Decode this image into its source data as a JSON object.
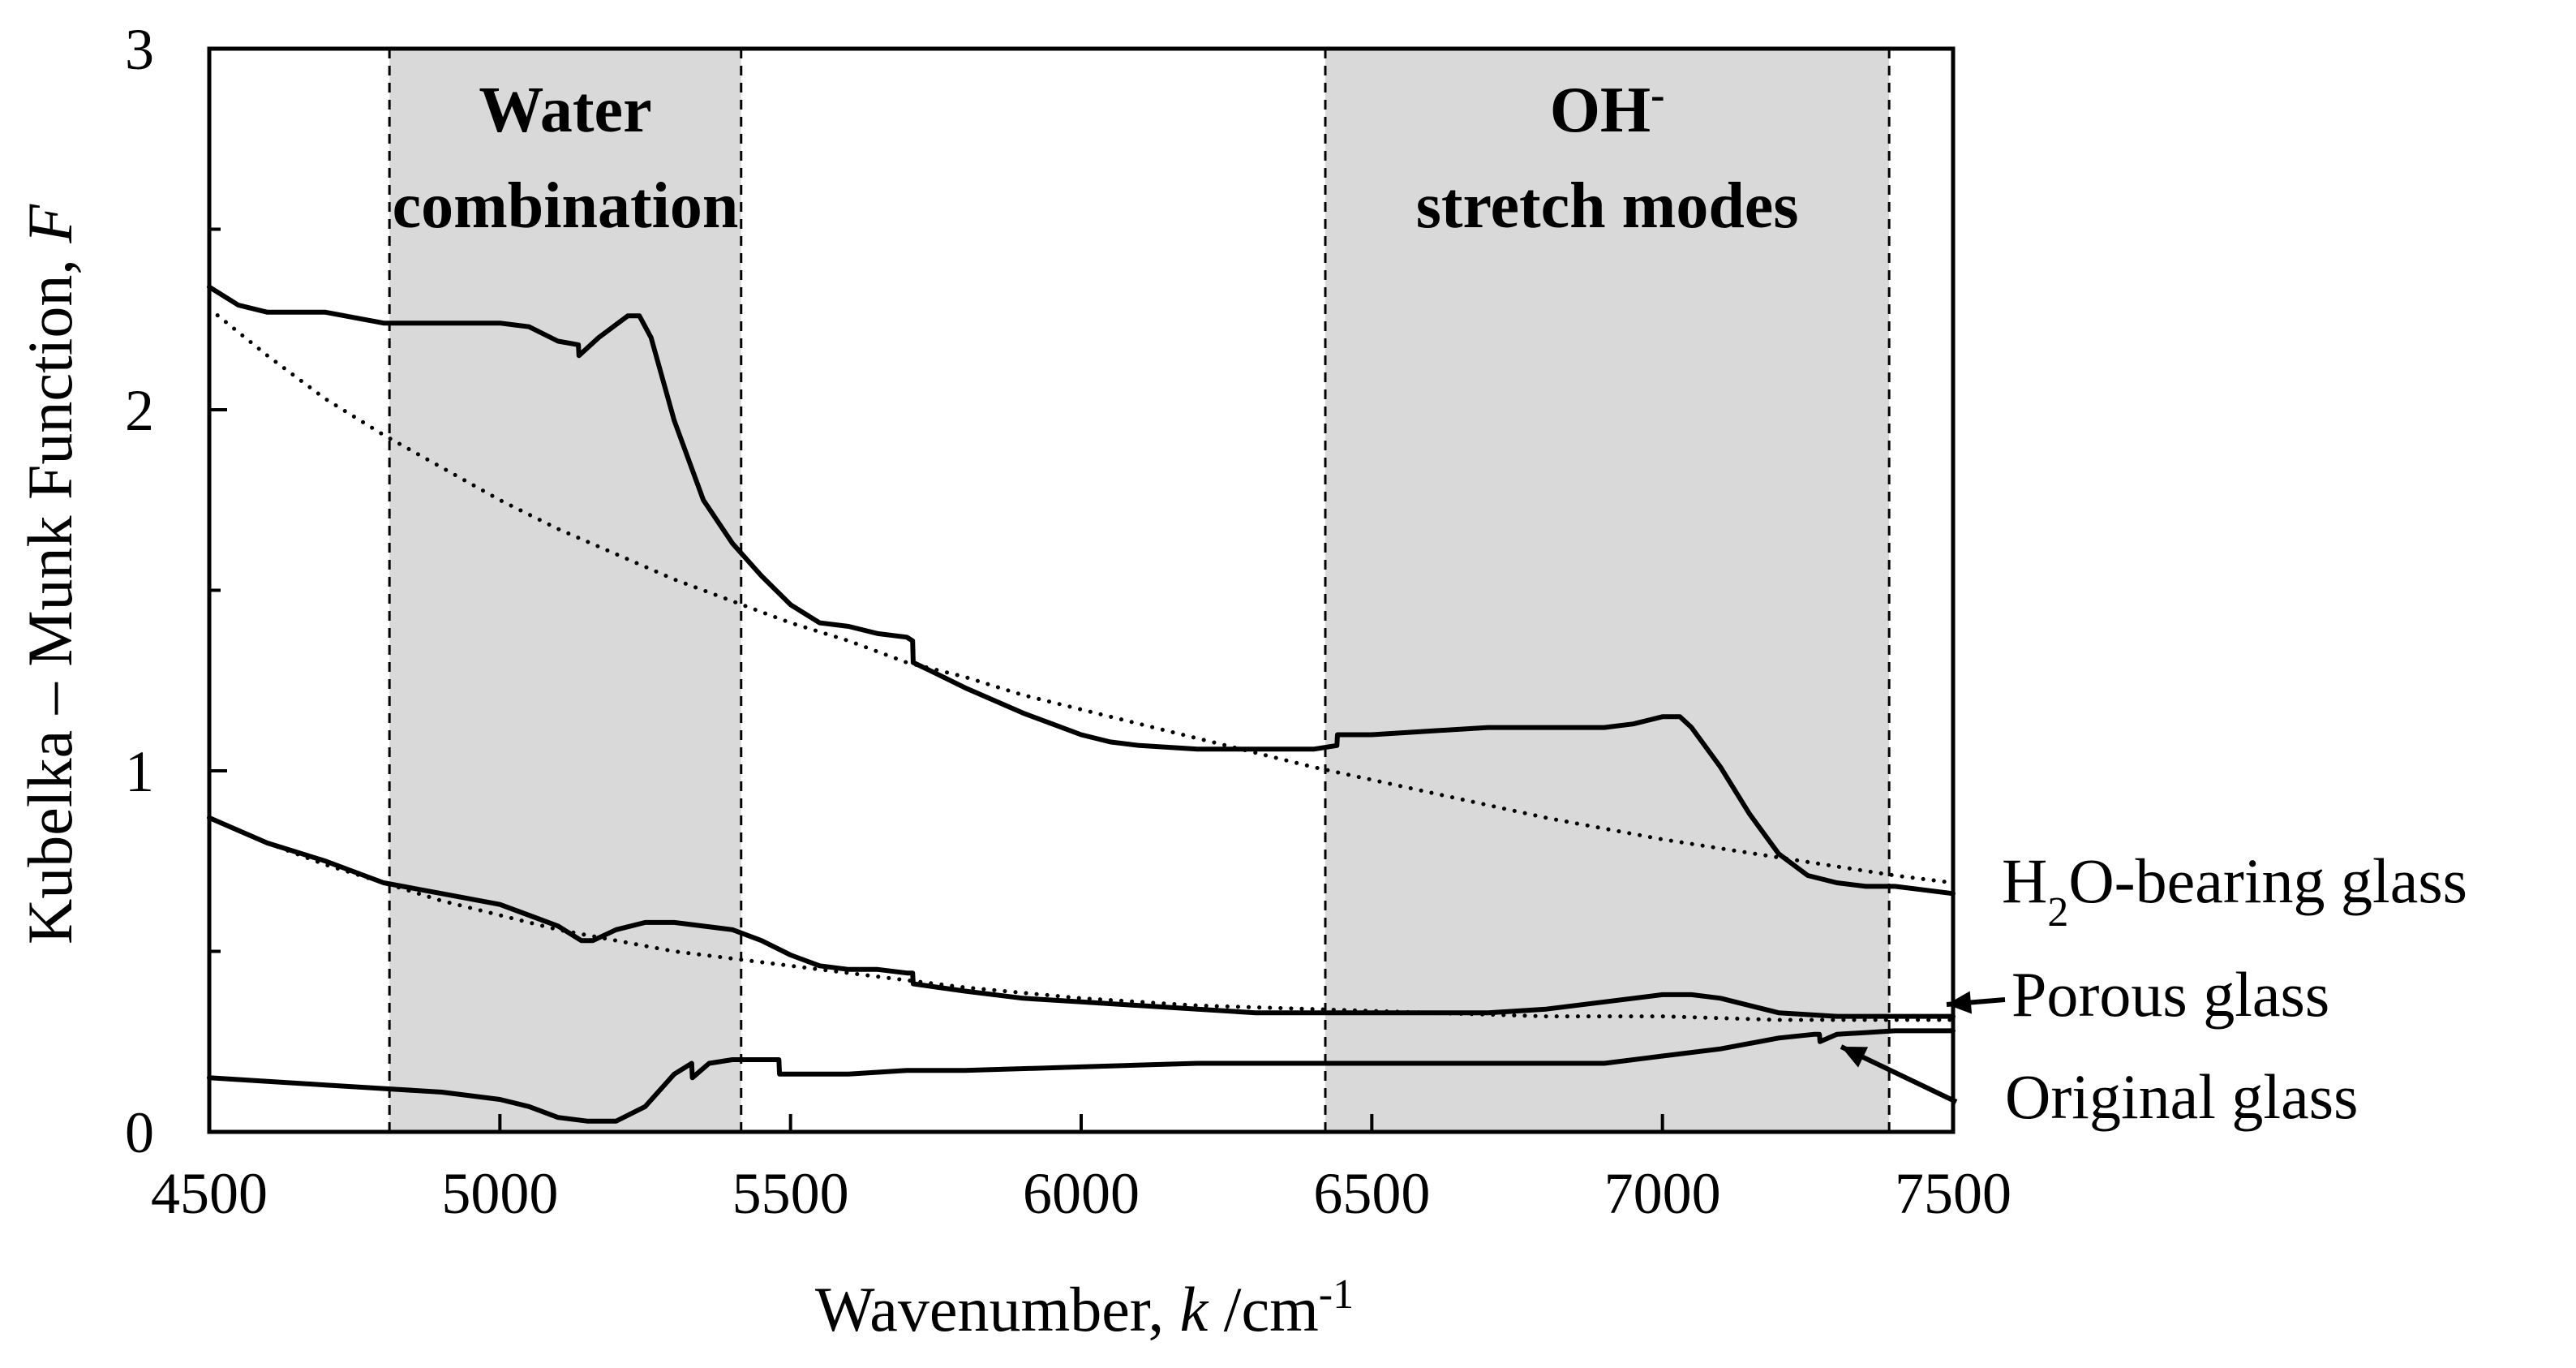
{
  "chart_data": {
    "type": "line",
    "xlabel": {
      "prefix": "Wavenumber, ",
      "var": "k",
      "unit": " /cm",
      "sup": "-1"
    },
    "ylabel": {
      "prefix": "Kubelka – Munk Function, ",
      "var": "F"
    },
    "xlim": [
      4500,
      7500
    ],
    "ylim": [
      0,
      3
    ],
    "xticks": [
      "4500",
      "5000",
      "5500",
      "6000",
      "6500",
      "7000",
      "7500"
    ],
    "yticks": [
      "0",
      "1",
      "2",
      "3"
    ],
    "regions": [
      {
        "name": "water-combination",
        "x_start": 4810,
        "x_end": 5415,
        "label_lines": [
          "Water",
          "combination"
        ],
        "label_sup": ""
      },
      {
        "name": "oh-stretch",
        "x_start": 6420,
        "x_end": 7390,
        "label_lines": [
          "OH",
          "stretch modes"
        ],
        "label_sup": "-"
      }
    ],
    "series": [
      {
        "name": "H2O-bearing glass",
        "label_main": "H",
        "label_sub": "2",
        "label_rest": "O-bearing glass",
        "style": "solid",
        "x": [
          4500,
          4550,
          4600,
          4700,
          4800,
          4900,
          5000,
          5050,
          5100,
          5135,
          5136,
          5170,
          5220,
          5240,
          5260,
          5300,
          5350,
          5400,
          5450,
          5500,
          5550,
          5600,
          5650,
          5700,
          5710,
          5711,
          5750,
          5800,
          5900,
          6000,
          6050,
          6100,
          6200,
          6300,
          6400,
          6440,
          6441,
          6500,
          6600,
          6700,
          6800,
          6900,
          6950,
          7000,
          7030,
          7050,
          7100,
          7150,
          7200,
          7250,
          7300,
          7350,
          7400,
          7450,
          7500
        ],
        "y": [
          2.34,
          2.29,
          2.27,
          2.27,
          2.24,
          2.24,
          2.24,
          2.23,
          2.19,
          2.18,
          2.15,
          2.2,
          2.26,
          2.26,
          2.2,
          1.97,
          1.75,
          1.63,
          1.54,
          1.46,
          1.41,
          1.4,
          1.38,
          1.37,
          1.36,
          1.3,
          1.27,
          1.23,
          1.16,
          1.1,
          1.08,
          1.07,
          1.06,
          1.06,
          1.06,
          1.07,
          1.1,
          1.1,
          1.11,
          1.12,
          1.12,
          1.12,
          1.13,
          1.15,
          1.15,
          1.12,
          1.01,
          0.88,
          0.77,
          0.71,
          0.69,
          0.68,
          0.68,
          0.67,
          0.66
        ]
      },
      {
        "name": "H2O-bearing glass baseline",
        "style": "dotted",
        "x": [
          4500,
          4600,
          4700,
          4800,
          4900,
          5000,
          5100,
          5200,
          5300,
          5400,
          5500,
          5600,
          5700,
          5800,
          5900,
          6000,
          6200,
          6400,
          6600,
          6800,
          7000,
          7200,
          7400,
          7500
        ],
        "y": [
          2.28,
          2.15,
          2.03,
          1.93,
          1.84,
          1.75,
          1.67,
          1.6,
          1.53,
          1.47,
          1.41,
          1.36,
          1.3,
          1.26,
          1.21,
          1.17,
          1.09,
          1.01,
          0.94,
          0.87,
          0.81,
          0.76,
          0.71,
          0.69
        ]
      },
      {
        "name": "Porous glass",
        "label_main": "Porous glass",
        "style": "solid",
        "x": [
          4500,
          4600,
          4700,
          4800,
          4900,
          5000,
          5050,
          5100,
          5140,
          5160,
          5200,
          5250,
          5300,
          5400,
          5450,
          5500,
          5550,
          5600,
          5650,
          5700,
          5710,
          5711,
          5800,
          5900,
          6000,
          6100,
          6200,
          6300,
          6400,
          6500,
          6600,
          6700,
          6800,
          6900,
          7000,
          7050,
          7100,
          7150,
          7200,
          7300,
          7400,
          7500
        ],
        "y": [
          0.87,
          0.8,
          0.75,
          0.69,
          0.66,
          0.63,
          0.6,
          0.57,
          0.53,
          0.53,
          0.56,
          0.58,
          0.58,
          0.56,
          0.53,
          0.49,
          0.46,
          0.45,
          0.45,
          0.44,
          0.44,
          0.41,
          0.39,
          0.37,
          0.36,
          0.35,
          0.34,
          0.33,
          0.33,
          0.33,
          0.33,
          0.33,
          0.34,
          0.36,
          0.38,
          0.38,
          0.37,
          0.35,
          0.33,
          0.32,
          0.32,
          0.32
        ]
      },
      {
        "name": "Porous glass baseline",
        "style": "dotted",
        "x": [
          4500,
          4600,
          4700,
          4800,
          4900,
          5000,
          5100,
          5200,
          5300,
          5400,
          5500,
          5600,
          5700,
          5800,
          6000,
          6200,
          6400,
          6600,
          6800,
          7000,
          7200,
          7500
        ],
        "y": [
          0.87,
          0.8,
          0.74,
          0.69,
          0.64,
          0.6,
          0.56,
          0.53,
          0.5,
          0.48,
          0.46,
          0.44,
          0.42,
          0.4,
          0.37,
          0.35,
          0.34,
          0.33,
          0.32,
          0.32,
          0.31,
          0.31
        ]
      },
      {
        "name": "Original glass",
        "label_main": "Original glass",
        "style": "solid",
        "x": [
          4500,
          4600,
          4700,
          4800,
          4900,
          5000,
          5050,
          5100,
          5150,
          5200,
          5250,
          5300,
          5330,
          5331,
          5360,
          5400,
          5480,
          5481,
          5600,
          5700,
          5800,
          6000,
          6200,
          6400,
          6500,
          6700,
          6800,
          6900,
          7000,
          7100,
          7200,
          7260,
          7270,
          7271,
          7300,
          7400,
          7500
        ],
        "y": [
          0.15,
          0.14,
          0.13,
          0.12,
          0.11,
          0.09,
          0.07,
          0.04,
          0.03,
          0.03,
          0.07,
          0.16,
          0.19,
          0.15,
          0.19,
          0.2,
          0.2,
          0.16,
          0.16,
          0.17,
          0.17,
          0.18,
          0.19,
          0.19,
          0.19,
          0.19,
          0.19,
          0.19,
          0.21,
          0.23,
          0.26,
          0.27,
          0.27,
          0.25,
          0.27,
          0.28,
          0.28
        ]
      }
    ]
  }
}
